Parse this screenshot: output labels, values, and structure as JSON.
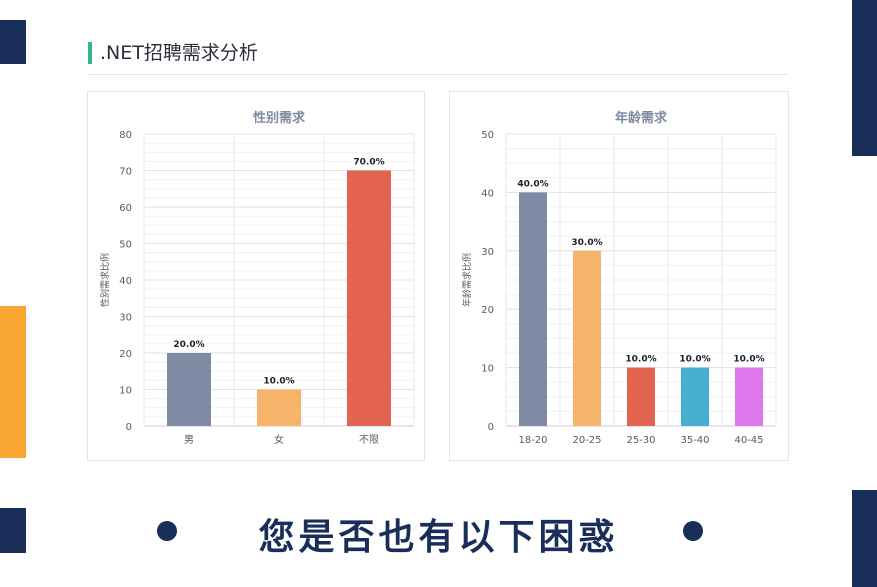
{
  "header": {
    "title": ".NET招聘需求分析"
  },
  "banner": {
    "text": "您是否也有以下困惑"
  },
  "colors": {
    "navy": "#1a2e5a",
    "orange": "#f8a531",
    "accent_green": "#2fb88a"
  },
  "chart_data": [
    {
      "type": "bar",
      "title": "性别需求",
      "ylabel": "性别需求比例",
      "xlabel": "",
      "categories": [
        "男",
        "女",
        "不限"
      ],
      "values": [
        20,
        10,
        70
      ],
      "labels": [
        "20.0%",
        "10.0%",
        "70.0%"
      ],
      "colors": [
        "#7f8aa5",
        "#f6b46a",
        "#e2634f"
      ],
      "ylim": [
        0,
        80
      ],
      "yticks": [
        0,
        10,
        20,
        30,
        40,
        50,
        60,
        70,
        80
      ],
      "grid": true
    },
    {
      "type": "bar",
      "title": "年龄需求",
      "ylabel": "年龄需求比例",
      "xlabel": "",
      "categories": [
        "18-20",
        "20-25",
        "25-30",
        "35-40",
        "40-45"
      ],
      "values": [
        40,
        30,
        10,
        10,
        10
      ],
      "labels": [
        "40.0%",
        "30.0%",
        "10.0%",
        "10.0%",
        "10.0%"
      ],
      "colors": [
        "#7f8aa5",
        "#f6b46a",
        "#e2634f",
        "#47b0d1",
        "#dc78ec"
      ],
      "ylim": [
        0,
        50
      ],
      "yticks": [
        0,
        10,
        20,
        30,
        40,
        50
      ],
      "grid": true
    }
  ]
}
